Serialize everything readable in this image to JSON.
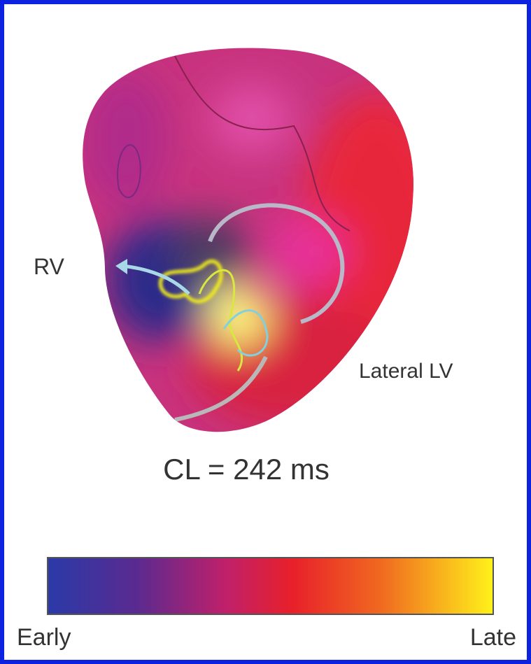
{
  "labels": {
    "rv": "RV",
    "lateral_lv": "Lateral LV",
    "cycle_length": "CL = 242 ms"
  },
  "colorbar": {
    "min_label": "Early",
    "max_label": "Late"
  }
}
